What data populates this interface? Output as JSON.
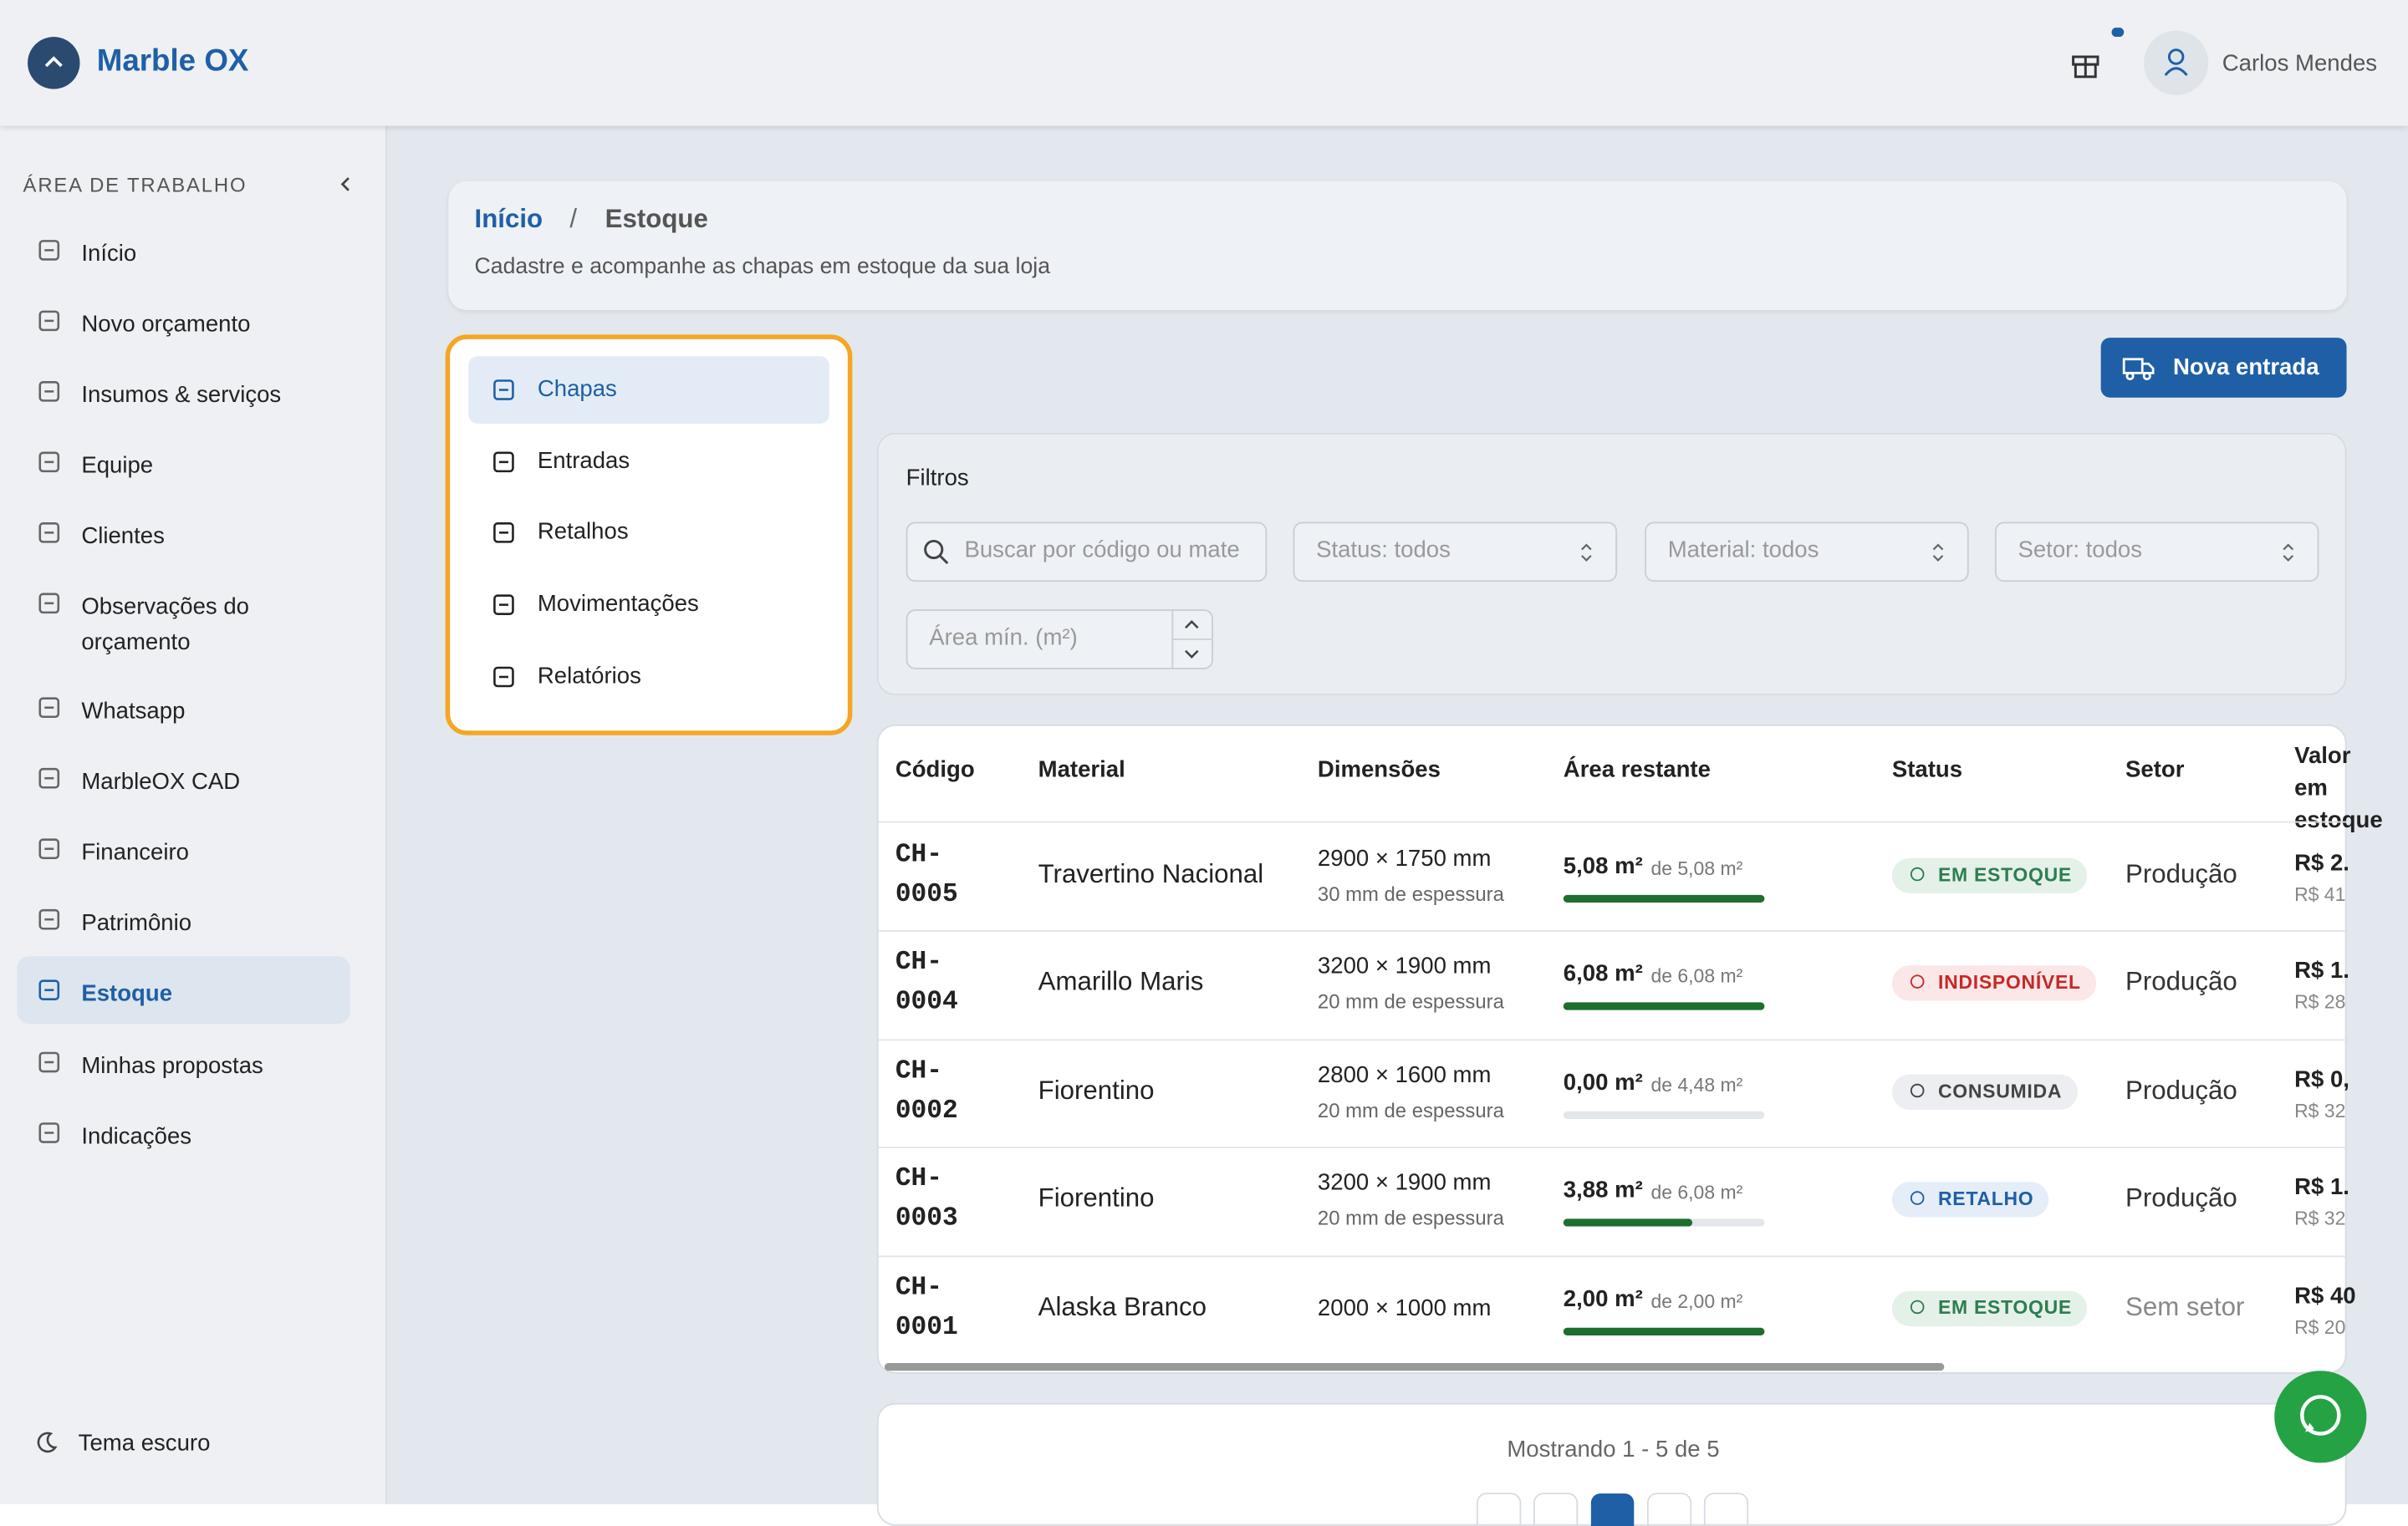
{
  "header": {
    "brand": "Marble OX",
    "user": "Carlos Mendes"
  },
  "sidebar": {
    "section": "ÁREA DE TRABALHO",
    "items": [
      "Início",
      "Novo orçamento",
      "Insumos & serviços",
      "Equipe",
      "Clientes",
      "Observações do orçamento",
      "Whatsapp",
      "MarbleOX CAD",
      "Financeiro",
      "Patrimônio",
      "Estoque",
      "Minhas propostas",
      "Indicações"
    ],
    "active": 10,
    "theme": "Tema escuro"
  },
  "breadcrumb": {
    "home": "Início",
    "separator": "/",
    "current": "Estoque",
    "subtitle": "Cadastre e acompanhe as chapas em estoque da sua loja"
  },
  "tabs": {
    "items": [
      "Chapas",
      "Entradas",
      "Retalhos",
      "Movimentações",
      "Relatórios"
    ],
    "active": 0
  },
  "button": "Nova entrada",
  "filters": {
    "title": "Filtros",
    "search": "Buscar por código ou mate",
    "status": "Status: todos",
    "material": "Material: todos",
    "sector": "Setor: todos",
    "area": "Área mín. (m²)"
  },
  "table": {
    "headers": [
      "Código",
      "Material",
      "Dimensões",
      "Área restante",
      "Status",
      "Setor",
      "Valor em estoque"
    ],
    "rows": [
      {
        "code": "CH-0005",
        "material": "Travertino Nacional",
        "dims": "2900 × 1750 mm",
        "thickness": "30 mm de espessura",
        "area": "5,08 m²",
        "total": "de 5,08 m²",
        "status": "EM ESTOQUE",
        "status_color": "#2e7d4f",
        "status_bg": "#e4f1e8",
        "sector": "Produção",
        "sector_color": "#333",
        "value": "R$ 2.",
        "value_sub": "R$ 41"
      },
      {
        "code": "CH-0004",
        "material": "Amarillo Maris",
        "dims": "3200 × 1900 mm",
        "thickness": "20 mm de espessura",
        "area": "6,08 m²",
        "total": "de 6,08 m²",
        "status": "INDISPONÍVEL",
        "status_color": "#c62828",
        "status_bg": "#fbe7e7",
        "sector": "Produção",
        "sector_color": "#333",
        "value": "R$ 1.",
        "value_sub": "R$ 28"
      },
      {
        "code": "CH-0002",
        "material": "Fiorentino",
        "dims": "2800 × 1600 mm",
        "thickness": "20 mm de espessura",
        "area": "0,00 m²",
        "total": "de 4,48 m²",
        "status": "CONSUMIDA",
        "status_color": "#444",
        "status_bg": "#eceef1",
        "sector": "Produção",
        "sector_color": "#333",
        "value": "R$ 0,",
        "value_sub": "R$ 32"
      },
      {
        "code": "CH-0003",
        "material": "Fiorentino",
        "dims": "3200 × 1900 mm",
        "thickness": "20 mm de espessura",
        "area": "3,88 m²",
        "total": "de 6,08 m²",
        "status": "RETALHO",
        "status_color": "#1f5fa6",
        "status_bg": "#e4edf8",
        "sector": "Produção",
        "sector_color": "#333",
        "value": "R$ 1.",
        "value_sub": "R$ 32"
      },
      {
        "code": "CH-0001",
        "material": "Alaska Branco",
        "dims": "2000 × 1000 mm",
        "thickness": null,
        "area": "2,00 m²",
        "total": "de 2,00 m²",
        "status": "EM ESTOQUE",
        "status_color": "#2e7d4f",
        "status_bg": "#e4f1e8",
        "sector": "Sem setor",
        "sector_color": "#888",
        "value": "R$ 40",
        "value_sub": "R$ 20"
      }
    ]
  },
  "footer": "Mostrando 1 - 5 de 5"
}
